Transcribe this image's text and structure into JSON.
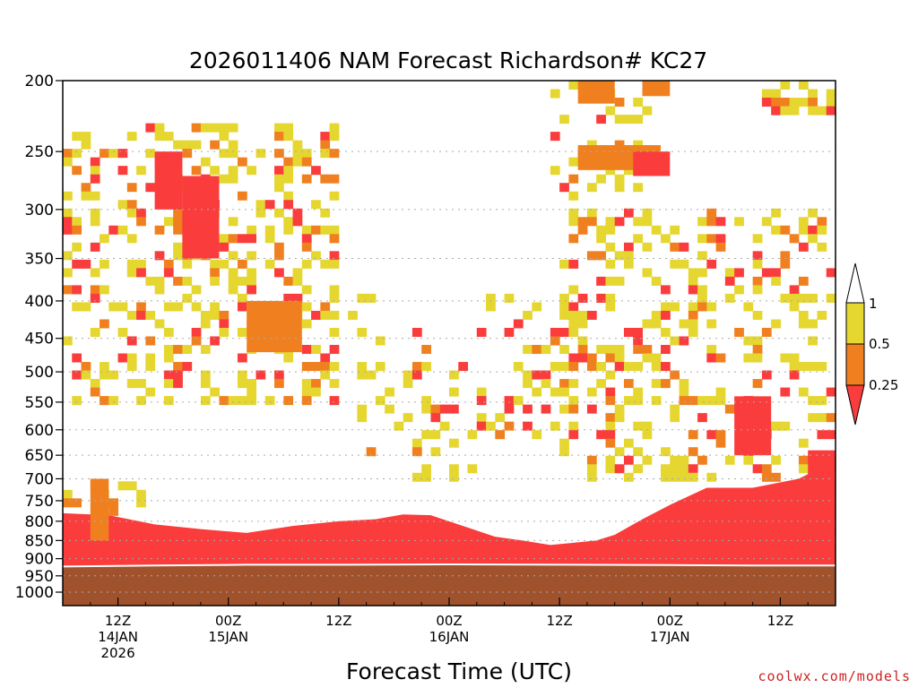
{
  "chart_data": {
    "type": "heatmap",
    "title": "2026011406 NAM Forecast Richardson# KC27",
    "xlabel": "Forecast Time (UTC)",
    "ylabel": "",
    "y_axis": {
      "scale": "log-pressure",
      "range": [
        1000,
        200
      ],
      "inverted": true
    },
    "y_ticks": [
      "200",
      "250",
      "300",
      "350",
      "400",
      "450",
      "500",
      "550",
      "600",
      "650",
      "700",
      "750",
      "800",
      "850",
      "900",
      "950",
      "1000"
    ],
    "x_ticks": [
      {
        "hour": 6,
        "line1": "12Z",
        "line2": "14JAN",
        "line3": "2026"
      },
      {
        "hour": 18,
        "line1": "00Z",
        "line2": "15JAN",
        "line3": ""
      },
      {
        "hour": 30,
        "line1": "12Z",
        "line2": "",
        "line3": ""
      },
      {
        "hour": 42,
        "line1": "00Z",
        "line2": "16JAN",
        "line3": ""
      },
      {
        "hour": 54,
        "line1": "12Z",
        "line2": "",
        "line3": ""
      },
      {
        "hour": 66,
        "line1": "00Z",
        "line2": "17JAN",
        "line3": ""
      },
      {
        "hour": 78,
        "line1": "12Z",
        "line2": "",
        "line3": ""
      }
    ],
    "x_range_hours": [
      0,
      84
    ],
    "gridlines": "dotted at pressure ticks",
    "legend": {
      "placement": "right",
      "thresholds": [
        "1",
        "0.5",
        "0.25"
      ],
      "classes": [
        {
          "range": "0.5-1",
          "color": "#e5d630"
        },
        {
          "range": "0.25-0.5",
          "color": "#f0801f"
        },
        {
          "range": "<0.25",
          "color": "#fa3c3c"
        }
      ]
    },
    "colors": {
      "ground": "#a0522d",
      "ri_05_1": "#e5d630",
      "ri_025_05": "#f0801f",
      "ri_lt_025": "#fa3c3c"
    },
    "surface_pressure_hPa": [
      [
        0,
        925
      ],
      [
        10,
        922
      ],
      [
        20,
        920
      ],
      [
        31,
        920
      ],
      [
        42,
        919
      ],
      [
        55,
        920
      ],
      [
        66,
        921
      ],
      [
        75,
        922
      ],
      [
        84,
        922
      ]
    ],
    "low_level_unstable_top_hPa": [
      [
        0,
        780
      ],
      [
        5,
        785
      ],
      [
        10,
        808
      ],
      [
        15,
        820
      ],
      [
        20,
        830
      ],
      [
        25,
        812
      ],
      [
        30,
        800
      ],
      [
        34,
        795
      ],
      [
        37,
        783
      ],
      [
        40,
        785
      ],
      [
        43,
        808
      ],
      [
        47,
        840
      ],
      [
        50,
        850
      ],
      [
        53,
        862
      ],
      [
        56,
        855
      ],
      [
        58,
        850
      ],
      [
        60,
        835
      ],
      [
        63,
        795
      ],
      [
        66,
        760
      ],
      [
        70,
        720
      ],
      [
        75,
        720
      ],
      [
        80,
        700
      ],
      [
        84,
        660
      ]
    ],
    "regions": [
      {
        "cat": "ri_025_05",
        "t": [
          3,
          5
        ],
        "p": [
          850,
          700
        ]
      },
      {
        "cat": "ri_025_05",
        "t": [
          20,
          26
        ],
        "p": [
          470,
          400
        ]
      },
      {
        "cat": "ri_lt_025",
        "t": [
          10,
          13
        ],
        "p": [
          300,
          250
        ]
      },
      {
        "cat": "ri_lt_025",
        "t": [
          13,
          17
        ],
        "p": [
          350,
          270
        ]
      },
      {
        "cat": "ri_025_05",
        "t": [
          56,
          60
        ],
        "p": [
          215,
          200
        ]
      },
      {
        "cat": "ri_025_05",
        "t": [
          63,
          66
        ],
        "p": [
          210,
          200
        ]
      },
      {
        "cat": "ri_025_05",
        "t": [
          56,
          65
        ],
        "p": [
          265,
          245
        ]
      },
      {
        "cat": "ri_lt_025",
        "t": [
          62,
          66
        ],
        "p": [
          270,
          250
        ]
      },
      {
        "cat": "ri_lt_025",
        "t": [
          73,
          77
        ],
        "p": [
          650,
          540
        ]
      },
      {
        "cat": "ri_lt_025",
        "t": [
          81,
          84
        ],
        "p": [
          740,
          640
        ]
      }
    ]
  },
  "credit": "coolwx.com/models"
}
